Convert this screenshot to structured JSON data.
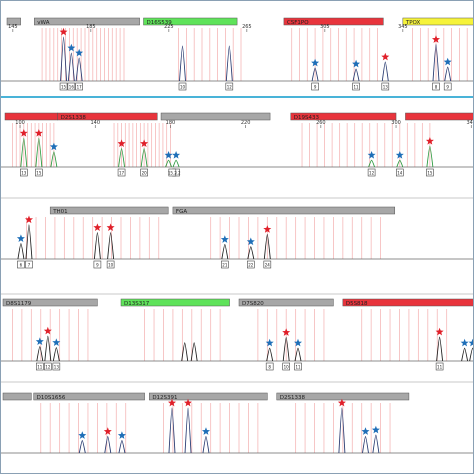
{
  "colors": {
    "star_red": "#e0202a",
    "star_blue": "#1f6fb8",
    "peak_navy": "#2c3e73",
    "peak_green": "#2e9a40",
    "peak_red": "#cc2020",
    "peak_black": "#222222",
    "bin_red": "#f5b8b8",
    "marker_red": "#e8343c",
    "marker_grey": "#a7a7a7",
    "marker_green": "#5fe35a",
    "marker_yellow": "#f6f33a",
    "panel_divider": "#49b3d8"
  },
  "chart_data": [
    {
      "type": "line",
      "name": "blue-dye-panel",
      "peak_color": "#2c3e73",
      "x_range": [
        142,
        382
      ],
      "ticks": [
        "145",
        "185",
        "225",
        "265",
        "305",
        "345"
      ],
      "tick_values": [
        145,
        185,
        225,
        265,
        305,
        345
      ],
      "markers": [
        {
          "label": "",
          "start": 142,
          "end": 149,
          "color": "#a7a7a7"
        },
        {
          "label": "vWA",
          "start": 156,
          "end": 210,
          "color": "#a7a7a7"
        },
        {
          "label": "D16S539",
          "start": 212,
          "end": 260,
          "color": "#5fe35a"
        },
        {
          "label": "CSF1PO",
          "start": 284,
          "end": 335,
          "color": "#e8343c"
        },
        {
          "label": "TPOX",
          "start": 345,
          "end": 382,
          "color": "#f6f33a"
        }
      ],
      "bins": [
        160,
        162,
        164,
        166,
        168,
        170,
        172,
        174,
        176,
        178,
        180,
        182,
        184,
        186,
        188,
        190,
        192,
        194,
        196,
        198,
        200,
        202,
        230,
        234,
        238,
        242,
        246,
        250,
        254,
        258,
        262,
        288,
        292,
        296,
        300,
        304,
        308,
        312,
        316,
        320,
        324,
        328,
        332,
        350,
        354,
        358,
        362,
        366,
        370,
        374,
        378
      ],
      "peaks": [
        {
          "x": 171,
          "h": 0.88,
          "star": "red",
          "allele": "15"
        },
        {
          "x": 175,
          "h": 0.56,
          "star": "blue",
          "allele": "16"
        },
        {
          "x": 179,
          "h": 0.46,
          "star": "blue",
          "allele": "17"
        },
        {
          "x": 232,
          "h": 0.7,
          "star": "",
          "allele": "10"
        },
        {
          "x": 256,
          "h": 0.7,
          "star": "",
          "allele": "12"
        },
        {
          "x": 300,
          "h": 0.26,
          "star": "blue",
          "allele": "9"
        },
        {
          "x": 321,
          "h": 0.24,
          "star": "blue",
          "allele": "11"
        },
        {
          "x": 336,
          "h": 0.38,
          "star": "red",
          "allele": "13"
        },
        {
          "x": 362,
          "h": 0.73,
          "star": "red",
          "allele": "8"
        },
        {
          "x": 368,
          "h": 0.28,
          "star": "blue",
          "allele": "9"
        }
      ]
    },
    {
      "type": "line",
      "name": "green-dye-panel",
      "peak_color": "#2e9a40",
      "x_range": [
        92,
        342
      ],
      "ticks": [
        "100",
        "140",
        "180",
        "220",
        "260",
        "300",
        "340"
      ],
      "tick_values": [
        100,
        140,
        180,
        220,
        260,
        300,
        340
      ],
      "markers": [
        {
          "label": "",
          "start": 92,
          "end": 120,
          "color": "#e8343c"
        },
        {
          "label": "D2S1338",
          "start": 120,
          "end": 173,
          "color": "#e8343c"
        },
        {
          "label": "",
          "start": 175,
          "end": 233,
          "color": "#a7a7a7"
        },
        {
          "label": "D19S433",
          "start": 244,
          "end": 300,
          "color": "#e8343c"
        },
        {
          "label": "",
          "start": 305,
          "end": 342,
          "color": "#e8343c"
        }
      ],
      "bins": [
        96,
        98,
        100,
        102,
        104,
        106,
        108,
        110,
        112,
        114,
        116,
        118,
        150,
        152,
        154,
        156,
        158,
        160,
        162,
        164,
        166,
        168,
        170,
        172,
        174,
        176,
        178,
        180,
        250,
        254,
        258,
        262,
        266,
        270,
        274,
        278,
        282,
        286,
        290,
        294,
        298,
        302,
        306,
        310,
        314,
        318
      ],
      "peaks": [
        {
          "x": 102,
          "h": 0.72,
          "star": "red",
          "allele": "13"
        },
        {
          "x": 110,
          "h": 0.72,
          "star": "red",
          "allele": "15"
        },
        {
          "x": 118,
          "h": 0.38,
          "star": "blue",
          "allele": ""
        },
        {
          "x": 154,
          "h": 0.46,
          "star": "red",
          "allele": "17"
        },
        {
          "x": 166,
          "h": 0.46,
          "star": "red",
          "allele": "20"
        },
        {
          "x": 179,
          "h": 0.17,
          "star": "blue",
          "allele": ""
        },
        {
          "x": 183,
          "h": 0.17,
          "star": "blue",
          "allele": "15.2"
        },
        {
          "x": 181,
          "h": 0.0,
          "star": "",
          "allele": "15.2"
        },
        {
          "x": 287,
          "h": 0.17,
          "star": "blue",
          "allele": "12"
        },
        {
          "x": 302,
          "h": 0.17,
          "star": "blue",
          "allele": "14"
        },
        {
          "x": 318,
          "h": 0.52,
          "star": "red",
          "allele": "15"
        }
      ]
    },
    {
      "type": "line",
      "name": "yellow-dye-panel",
      "peak_color": "#222222",
      "x_range": [
        0,
        1
      ],
      "ticks": [],
      "tick_values": [],
      "markers": [
        {
          "label": "TH01",
          "start": 0.1,
          "end": 0.35,
          "color": "#a7a7a7"
        },
        {
          "label": "FGA",
          "start": 0.36,
          "end": 0.83,
          "color": "#a7a7a7"
        }
      ],
      "bins": [
        0.05,
        0.07,
        0.09,
        0.11,
        0.13,
        0.15,
        0.17,
        0.19,
        0.21,
        0.23,
        0.25,
        0.27,
        0.29,
        0.31,
        0.33,
        0.44,
        0.46,
        0.48,
        0.5,
        0.52,
        0.54,
        0.56,
        0.58,
        0.6,
        0.62,
        0.64,
        0.66,
        0.68,
        0.7,
        0.72,
        0.74,
        0.76,
        0.78,
        0.8
      ],
      "peaks": [
        {
          "x": 0.038,
          "h": 0.35,
          "star": "blue",
          "allele": "6"
        },
        {
          "x": 0.055,
          "h": 0.78,
          "star": "red",
          "allele": "7"
        },
        {
          "x": 0.2,
          "h": 0.6,
          "star": "red",
          "allele": "9"
        },
        {
          "x": 0.228,
          "h": 0.6,
          "star": "red",
          "allele": "10"
        },
        {
          "x": 0.47,
          "h": 0.33,
          "star": "blue",
          "allele": "21"
        },
        {
          "x": 0.525,
          "h": 0.28,
          "star": "blue",
          "allele": "22"
        },
        {
          "x": 0.56,
          "h": 0.56,
          "star": "red",
          "allele": "24"
        }
      ]
    },
    {
      "type": "line",
      "name": "red-dye-panel",
      "peak_color": "#222222",
      "x_range": [
        0,
        1
      ],
      "ticks": [],
      "tick_values": [],
      "markers": [
        {
          "label": "D8S1179",
          "start": 0.0,
          "end": 0.2,
          "color": "#a7a7a7"
        },
        {
          "label": "D13S317",
          "start": 0.25,
          "end": 0.48,
          "color": "#5fe35a"
        },
        {
          "label": "D7S820",
          "start": 0.5,
          "end": 0.7,
          "color": "#a7a7a7"
        },
        {
          "label": "D5S818",
          "start": 0.72,
          "end": 1.0,
          "color": "#e8343c"
        }
      ],
      "bins": [
        0.02,
        0.04,
        0.06,
        0.08,
        0.1,
        0.12,
        0.14,
        0.16,
        0.18,
        0.3,
        0.32,
        0.34,
        0.36,
        0.38,
        0.4,
        0.42,
        0.44,
        0.46,
        0.54,
        0.56,
        0.58,
        0.6,
        0.62,
        0.64,
        0.66,
        0.68,
        0.76,
        0.78,
        0.8,
        0.82,
        0.84,
        0.86,
        0.88,
        0.9,
        0.92,
        0.94
      ],
      "peaks": [
        {
          "x": 0.078,
          "h": 0.3,
          "star": "blue",
          "allele": "11"
        },
        {
          "x": 0.095,
          "h": 0.52,
          "star": "red",
          "allele": "12"
        },
        {
          "x": 0.113,
          "h": 0.28,
          "star": "blue",
          "allele": "13"
        },
        {
          "x": 0.385,
          "h": 0.38,
          "star": "",
          "allele": ""
        },
        {
          "x": 0.405,
          "h": 0.38,
          "star": "",
          "allele": ""
        },
        {
          "x": 0.565,
          "h": 0.27,
          "star": "blue",
          "allele": "8"
        },
        {
          "x": 0.6,
          "h": 0.49,
          "star": "red",
          "allele": "10"
        },
        {
          "x": 0.625,
          "h": 0.27,
          "star": "blue",
          "allele": "11"
        },
        {
          "x": 0.925,
          "h": 0.5,
          "star": "red",
          "allele": "11"
        },
        {
          "x": 0.978,
          "h": 0.27,
          "star": "blue",
          "allele": ""
        },
        {
          "x": 0.995,
          "h": 0.27,
          "star": "blue",
          "allele": ""
        }
      ]
    },
    {
      "type": "line",
      "name": "purple-dye-panel",
      "peak_color": "#2c3e73",
      "x_range": [
        0,
        1
      ],
      "ticks": [],
      "tick_values": [],
      "markers": [
        {
          "label": "",
          "start": 0.0,
          "end": 0.06,
          "color": "#a7a7a7"
        },
        {
          "label": "D10S1656",
          "start": 0.065,
          "end": 0.3,
          "color": "#a7a7a7"
        },
        {
          "label": "D12S391",
          "start": 0.31,
          "end": 0.56,
          "color": "#a7a7a7"
        },
        {
          "label": "D2S1338",
          "start": 0.58,
          "end": 0.86,
          "color": "#a7a7a7"
        }
      ],
      "bins": [
        0.08,
        0.1,
        0.12,
        0.14,
        0.16,
        0.18,
        0.2,
        0.22,
        0.24,
        0.26,
        0.34,
        0.36,
        0.38,
        0.4,
        0.42,
        0.44,
        0.46,
        0.48,
        0.5,
        0.52,
        0.54,
        0.62,
        0.64,
        0.66,
        0.68,
        0.7,
        0.72,
        0.74,
        0.76,
        0.78,
        0.8,
        0.82
      ],
      "peaks": [
        {
          "x": 0.168,
          "h": 0.25,
          "star": "blue",
          "allele": ""
        },
        {
          "x": 0.222,
          "h": 0.33,
          "star": "red",
          "allele": ""
        },
        {
          "x": 0.252,
          "h": 0.25,
          "star": "blue",
          "allele": ""
        },
        {
          "x": 0.358,
          "h": 0.9,
          "star": "red",
          "allele": ""
        },
        {
          "x": 0.392,
          "h": 0.9,
          "star": "red",
          "allele": ""
        },
        {
          "x": 0.43,
          "h": 0.33,
          "star": "blue",
          "allele": ""
        },
        {
          "x": 0.718,
          "h": 0.9,
          "star": "red",
          "allele": ""
        },
        {
          "x": 0.768,
          "h": 0.33,
          "star": "blue",
          "allele": ""
        },
        {
          "x": 0.79,
          "h": 0.36,
          "star": "blue",
          "allele": ""
        }
      ]
    }
  ]
}
